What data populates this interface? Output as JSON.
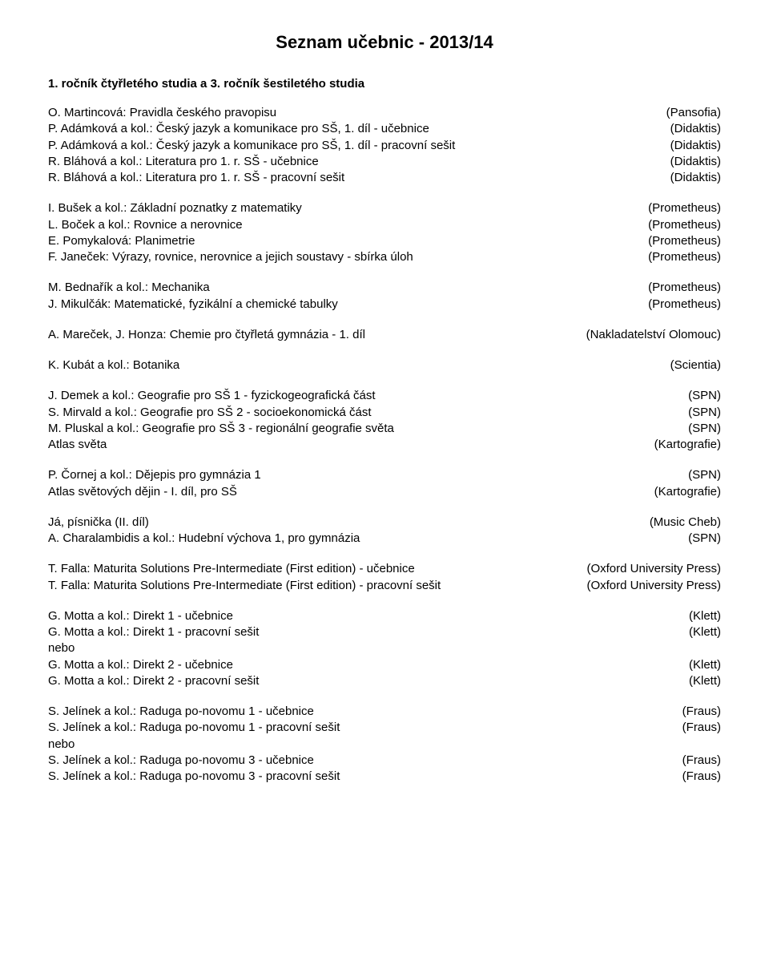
{
  "page_title": "Seznam učebnic  - 2013/14",
  "subtitle": "1. ročník čtyřletého studia a 3. ročník šestiletého studia",
  "or_label": "nebo",
  "groups": [
    {
      "items": [
        {
          "title": "O. Martincová: Pravidla českého pravopisu",
          "pub": "(Pansofia)"
        },
        {
          "title": "P. Adámková a kol.: Český jazyk a komunikace pro SŠ, 1. díl - učebnice",
          "pub": "(Didaktis)"
        },
        {
          "title": "P. Adámková a kol.: Český jazyk a komunikace pro SŠ, 1. díl - pracovní sešit",
          "pub": "(Didaktis)"
        },
        {
          "title": "R. Bláhová a kol.: Literatura pro 1. r. SŠ - učebnice",
          "pub": "(Didaktis)"
        },
        {
          "title": "R. Bláhová a kol.: Literatura pro 1. r. SŠ - pracovní sešit",
          "pub": "(Didaktis)"
        }
      ]
    },
    {
      "items": [
        {
          "title": "I. Bušek a kol.: Základní poznatky z matematiky",
          "pub": "(Prometheus)"
        },
        {
          "title": "L. Boček a kol.: Rovnice a nerovnice",
          "pub": "(Prometheus)"
        },
        {
          "title": "E. Pomykalová: Planimetrie",
          "pub": "(Prometheus)"
        },
        {
          "title": "F. Janeček: Výrazy, rovnice, nerovnice a jejich soustavy - sbírka úloh",
          "pub": "(Prometheus)"
        }
      ]
    },
    {
      "items": [
        {
          "title": "M. Bednařík a kol.: Mechanika",
          "pub": "(Prometheus)"
        },
        {
          "title": "J. Mikulčák: Matematické, fyzikální a chemické tabulky",
          "pub": "(Prometheus)"
        }
      ]
    },
    {
      "items": [
        {
          "title": "A. Mareček, J. Honza: Chemie pro čtyřletá gymnázia - 1. díl",
          "pub": "(Nakladatelství Olomouc)"
        }
      ]
    },
    {
      "items": [
        {
          "title": "K. Kubát a kol.: Botanika",
          "pub": "(Scientia)"
        }
      ]
    },
    {
      "items": [
        {
          "title": "J. Demek a kol.: Geografie pro SŠ 1 - fyzickogeografická část",
          "pub": "(SPN)"
        },
        {
          "title": "S. Mirvald a kol.: Geografie pro SŠ 2 - socioekonomická část",
          "pub": "(SPN)"
        },
        {
          "title": "M. Pluskal a kol.: Geografie pro SŠ 3 - regionální geografie světa",
          "pub": "(SPN)"
        },
        {
          "title": "Atlas světa",
          "pub": "(Kartografie)"
        }
      ]
    },
    {
      "items": [
        {
          "title": "P. Čornej a kol.: Dějepis pro gymnázia 1",
          "pub": "(SPN)"
        },
        {
          "title": "Atlas světových dějin - I. díl, pro SŠ",
          "pub": "(Kartografie)"
        }
      ]
    },
    {
      "items": [
        {
          "title": "Já, písnička (II. díl)",
          "pub": "(Music Cheb)"
        },
        {
          "title": "A. Charalambidis a kol.: Hudební výchova 1, pro gymnázia",
          "pub": "(SPN)"
        }
      ]
    },
    {
      "items": [
        {
          "title": "T. Falla: Maturita Solutions Pre-Intermediate (First edition)  - učebnice",
          "pub": "(Oxford University Press)"
        },
        {
          "title": "T. Falla: Maturita Solutions Pre-Intermediate (First edition)  - pracovní sešit",
          "pub": "(Oxford University Press)"
        }
      ]
    },
    {
      "items": [
        {
          "title": "G. Motta a kol.: Direkt 1 - učebnice",
          "pub": "(Klett)"
        },
        {
          "title": "G. Motta a kol.: Direkt 1 - pracovní sešit",
          "pub": "(Klett)"
        },
        {
          "or": true
        },
        {
          "title": "G. Motta a kol.: Direkt 2 - učebnice",
          "pub": "(Klett)"
        },
        {
          "title": "G. Motta a kol.: Direkt 2 - pracovní sešit",
          "pub": "(Klett)"
        }
      ]
    },
    {
      "items": [
        {
          "title": "S. Jelínek a kol.: Raduga po-novomu 1 - učebnice",
          "pub": "(Fraus)"
        },
        {
          "title": "S. Jelínek a kol.: Raduga po-novomu 1 - pracovní sešit",
          "pub": "(Fraus)"
        },
        {
          "or": true
        },
        {
          "title": "S. Jelínek a kol.: Raduga po-novomu 3 - učebnice",
          "pub": "(Fraus)"
        },
        {
          "title": "S. Jelínek a kol.: Raduga po-novomu 3 - pracovní sešit",
          "pub": "(Fraus)"
        }
      ]
    }
  ]
}
